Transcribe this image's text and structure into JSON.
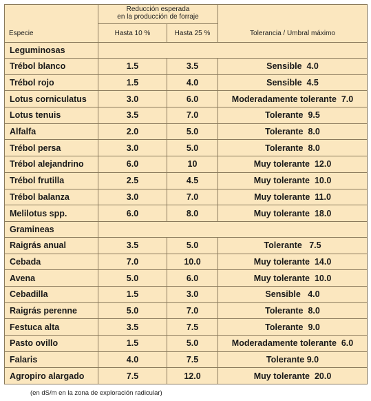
{
  "header": {
    "species": "Especie",
    "reduction": [
      "Reducción esperada",
      "en la producción de forraje"
    ],
    "up_to_10": "Hasta 10 %",
    "up_to_25": "Hasta 25 %",
    "tolerance": "Tolerancia / Umbral máximo"
  },
  "sections": [
    {
      "title": "Leguminosas",
      "rows": [
        {
          "species": "Trébol blanco",
          "h10": "1.5",
          "h25": "3.5",
          "tolerance": "Sensible  4.0"
        },
        {
          "species": "Trébol rojo",
          "h10": "1.5",
          "h25": "4.0",
          "tolerance": "Sensible  4.5"
        },
        {
          "species": "Lotus corniculatus",
          "h10": "3.0",
          "h25": "6.0",
          "tolerance": "Moderadamente tolerante  7.0"
        },
        {
          "species": "Lotus tenuis",
          "h10": "3.5",
          "h25": "7.0",
          "tolerance": "Tolerante  9.5"
        },
        {
          "species": "Alfalfa",
          "h10": "2.0",
          "h25": "5.0",
          "tolerance": "Tolerante  8.0"
        },
        {
          "species": "Trébol persa",
          "h10": "3.0",
          "h25": "5.0",
          "tolerance": "Tolerante  8.0"
        },
        {
          "species": "Trébol alejandrino",
          "h10": "6.0",
          "h25": "10",
          "tolerance": "Muy tolerante  12.0"
        },
        {
          "species": "Trébol frutilla",
          "h10": "2.5",
          "h25": "4.5",
          "tolerance": "Muy tolerante  10.0"
        },
        {
          "species": "Trébol balanza",
          "h10": "3.0",
          "h25": "7.0",
          "tolerance": "Muy tolerante  11.0"
        },
        {
          "species": "Melilotus spp.",
          "h10": "6.0",
          "h25": "8.0",
          "tolerance": "Muy tolerante  18.0"
        }
      ]
    },
    {
      "title": "Gramineas",
      "rows": [
        {
          "species": "Raigrás anual",
          "h10": "3.5",
          "h25": "5.0",
          "tolerance": "Tolerante   7.5"
        },
        {
          "species": "Cebada",
          "h10": "7.0",
          "h25": "10.0",
          "tolerance": "Muy tolerante  14.0"
        },
        {
          "species": "Avena",
          "h10": "5.0",
          "h25": "6.0",
          "tolerance": "Muy tolerante  10.0"
        },
        {
          "species": "Cebadilla",
          "h10": "1.5",
          "h25": "3.0",
          "tolerance": "Sensible   4.0"
        },
        {
          "species": "Raigrás perenne",
          "h10": "5.0",
          "h25": "7.0",
          "tolerance": "Tolerante  8.0"
        },
        {
          "species": "Festuca alta",
          "h10": "3.5",
          "h25": "7.5",
          "tolerance": "Tolerante  9.0"
        },
        {
          "species": "Pasto ovillo",
          "h10": "1.5",
          "h25": "5.0",
          "tolerance": "Moderadamente tolerante  6.0"
        },
        {
          "species": "Falaris",
          "h10": "4.0",
          "h25": "7.5",
          "tolerance": "Tolerante 9.0"
        },
        {
          "species": "Agropiro alargado",
          "h10": "7.5",
          "h25": "12.0",
          "tolerance": "Muy tolerante  20.0"
        }
      ]
    }
  ],
  "footnote": "(en dS/m en la zona de exploración radicular)"
}
